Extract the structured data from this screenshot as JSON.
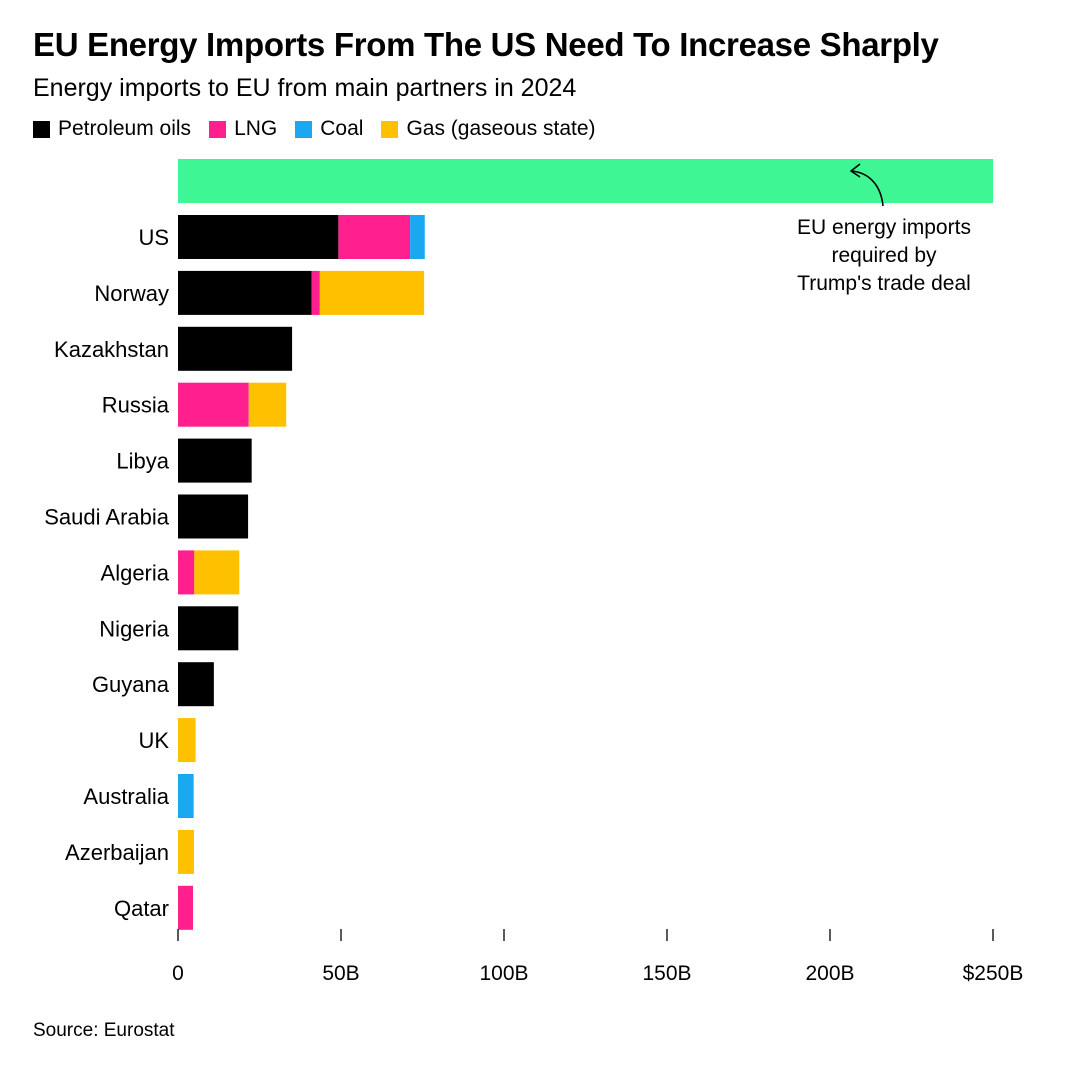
{
  "chart_data": {
    "type": "bar",
    "orientation": "horizontal",
    "stacked": true,
    "title": "EU Energy Imports From The US Need To Increase Sharply",
    "subtitle": "Energy imports to EU from main partners in 2024",
    "categories": [
      "US",
      "Norway",
      "Kazakhstan",
      "Russia",
      "Libya",
      "Saudi Arabia",
      "Algeria",
      "Nigeria",
      "Guyana",
      "UK",
      "Australia",
      "Azerbaijan",
      "Qatar"
    ],
    "series": [
      {
        "name": "Petroleum oils",
        "color": "#000000",
        "values": [
          49.2,
          41,
          35,
          0,
          22.6,
          21.5,
          0,
          18.5,
          11,
          0,
          0,
          0,
          0
        ]
      },
      {
        "name": "LNG",
        "color": "#ff1f8e",
        "values": [
          22,
          2.5,
          0,
          21.7,
          0,
          0,
          5,
          0,
          0,
          0,
          0,
          0,
          4.6
        ]
      },
      {
        "name": "Coal",
        "color": "#1aa9f0",
        "values": [
          4.5,
          0,
          0,
          0,
          0,
          0,
          0,
          0,
          0,
          0,
          4.8,
          0,
          0
        ]
      },
      {
        "name": "Gas (gaseous state)",
        "color": "#ffc000",
        "values": [
          0,
          32,
          0,
          11.5,
          0,
          0,
          13.8,
          0,
          0,
          5.4,
          0,
          4.9,
          0
        ]
      }
    ],
    "target": {
      "value": 250,
      "color": "#3ef794",
      "label_lines": [
        "EU energy imports",
        "required by",
        "Trump's trade deal"
      ]
    },
    "xlim": [
      0,
      250
    ],
    "x_ticks": [
      {
        "value": 0,
        "label": "0"
      },
      {
        "value": 50,
        "label": "50B"
      },
      {
        "value": 100,
        "label": "100B"
      },
      {
        "value": 150,
        "label": "150B"
      },
      {
        "value": 200,
        "label": "200B"
      },
      {
        "value": 250,
        "label": "$250B"
      }
    ],
    "source": "Source: Eurostat"
  }
}
